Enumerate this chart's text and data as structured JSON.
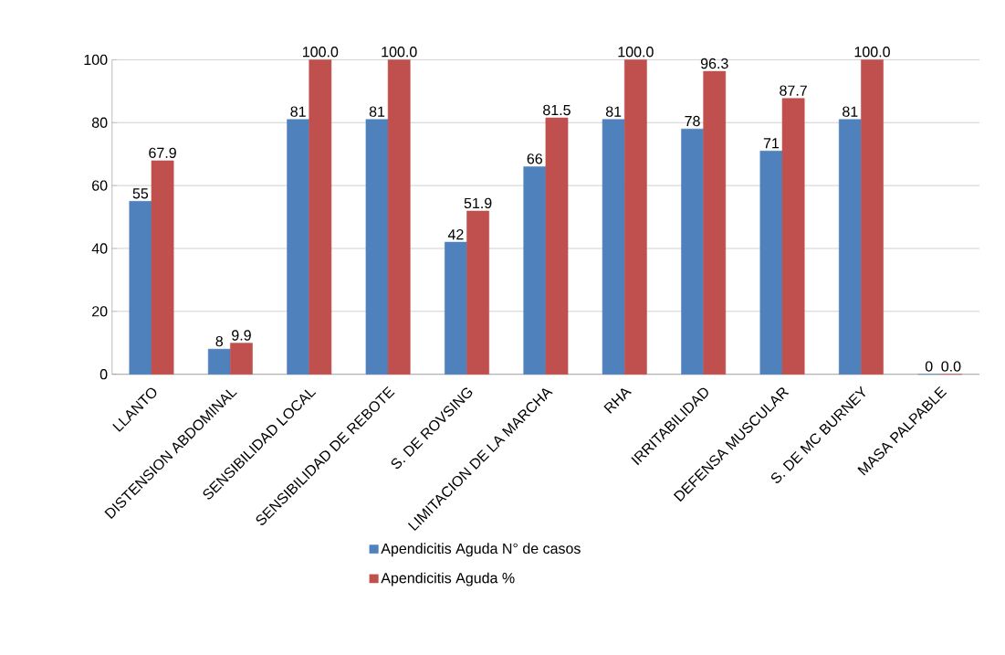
{
  "chart_data": {
    "type": "bar",
    "categories": [
      "LLANTO",
      "DISTENSION ABDOMINAL",
      "SENSIBILIDAD LOCAL",
      "SENSIBILIDAD DE REBOTE",
      "S. DE ROVSING",
      "LIMITACION DE LA MARCHA",
      "RHA",
      "IRRITABILIDAD",
      "DEFENSA MUSCULAR",
      "S. DE MC BURNEY",
      "MASA PALPABLE"
    ],
    "series": [
      {
        "name": "Apendicitis Aguda N° de casos",
        "color": "#4f81bd",
        "values": [
          55,
          8,
          81,
          81,
          42,
          66,
          81,
          78,
          71,
          81,
          0
        ],
        "value_labels": [
          "55",
          "8",
          "81",
          "81",
          "42",
          "66",
          "81",
          "78",
          "71",
          "81",
          "0"
        ]
      },
      {
        "name": "Apendicitis Aguda %",
        "color": "#c0504d",
        "values": [
          67.9,
          9.9,
          100.0,
          100.0,
          51.9,
          81.5,
          100.0,
          96.3,
          87.7,
          100.0,
          0.0
        ],
        "value_labels": [
          "67.9",
          "9.9",
          "100.0",
          "100.0",
          "51.9",
          "81.5",
          "100.0",
          "96.3",
          "87.7",
          "100.0",
          "0.0"
        ]
      }
    ],
    "ylim": [
      0,
      100
    ],
    "yticks": [
      0,
      20,
      40,
      60,
      80,
      100
    ],
    "grid": "y",
    "legend": "bottom"
  }
}
